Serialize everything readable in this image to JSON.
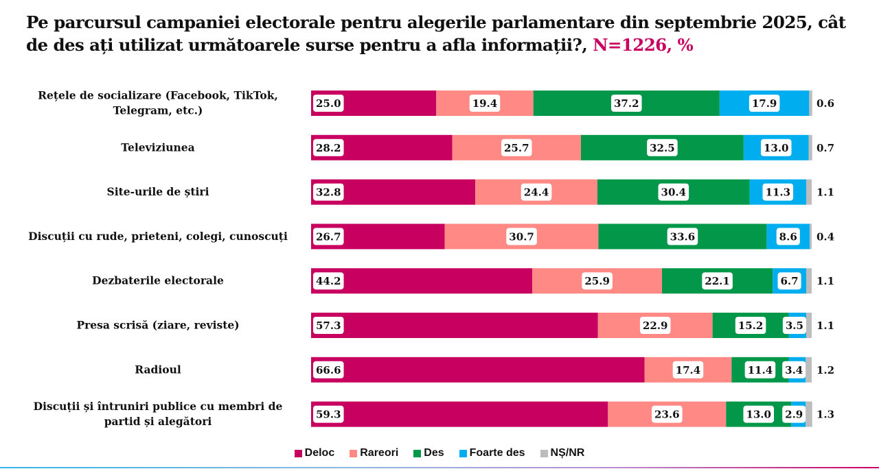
{
  "title": {
    "text": "Pe parcursul campaniei electorale pentru alegerile parlamentare din septembrie 2025, cât de des ați utilizat următoarele surse pentru a afla informații?,",
    "highlight": "N=1226, %"
  },
  "chart_data": {
    "type": "bar",
    "orientation": "horizontal",
    "stacked": true,
    "title": "Pe parcursul campaniei electorale pentru alegerile parlamentare din septembrie 2025, cât de des ați utilizat următoarele surse pentru a afla informații?, N=1226, %",
    "xlabel": "",
    "ylabel": "",
    "xlim": [
      0,
      100
    ],
    "grid": false,
    "legend_position": "bottom",
    "categories": [
      [
        "Rețele de socializare (Facebook, TikTok,",
        "Telegram, etc.)"
      ],
      [
        "Televiziunea"
      ],
      [
        "Site-urile de știri"
      ],
      [
        "Discuții cu rude, prieteni, colegi, cunoscuți"
      ],
      [
        "Dezbaterile electorale"
      ],
      [
        "Presa scrisă (ziare, reviste)"
      ],
      [
        "Radioul"
      ],
      [
        "Discuții și întruniri publice cu membri de",
        "partid și alegători"
      ]
    ],
    "series": [
      {
        "name": "Deloc",
        "color": "#c8005f",
        "values": [
          25.0,
          28.2,
          32.8,
          26.7,
          44.2,
          57.3,
          66.6,
          59.3
        ]
      },
      {
        "name": "Rareori",
        "color": "#ff8a85",
        "values": [
          19.4,
          25.7,
          24.4,
          30.7,
          25.9,
          22.9,
          17.4,
          23.6
        ]
      },
      {
        "name": "Des",
        "color": "#039749",
        "values": [
          37.2,
          32.5,
          30.4,
          33.6,
          22.1,
          15.2,
          11.4,
          13.0
        ]
      },
      {
        "name": "Foarte des",
        "color": "#00adef",
        "values": [
          17.9,
          13.0,
          11.3,
          8.6,
          6.7,
          3.5,
          3.4,
          2.9
        ]
      },
      {
        "name": "NȘ/NR",
        "color": "#bdbdbd",
        "values": [
          0.6,
          0.7,
          1.1,
          0.4,
          1.1,
          1.1,
          1.2,
          1.3
        ]
      }
    ]
  }
}
